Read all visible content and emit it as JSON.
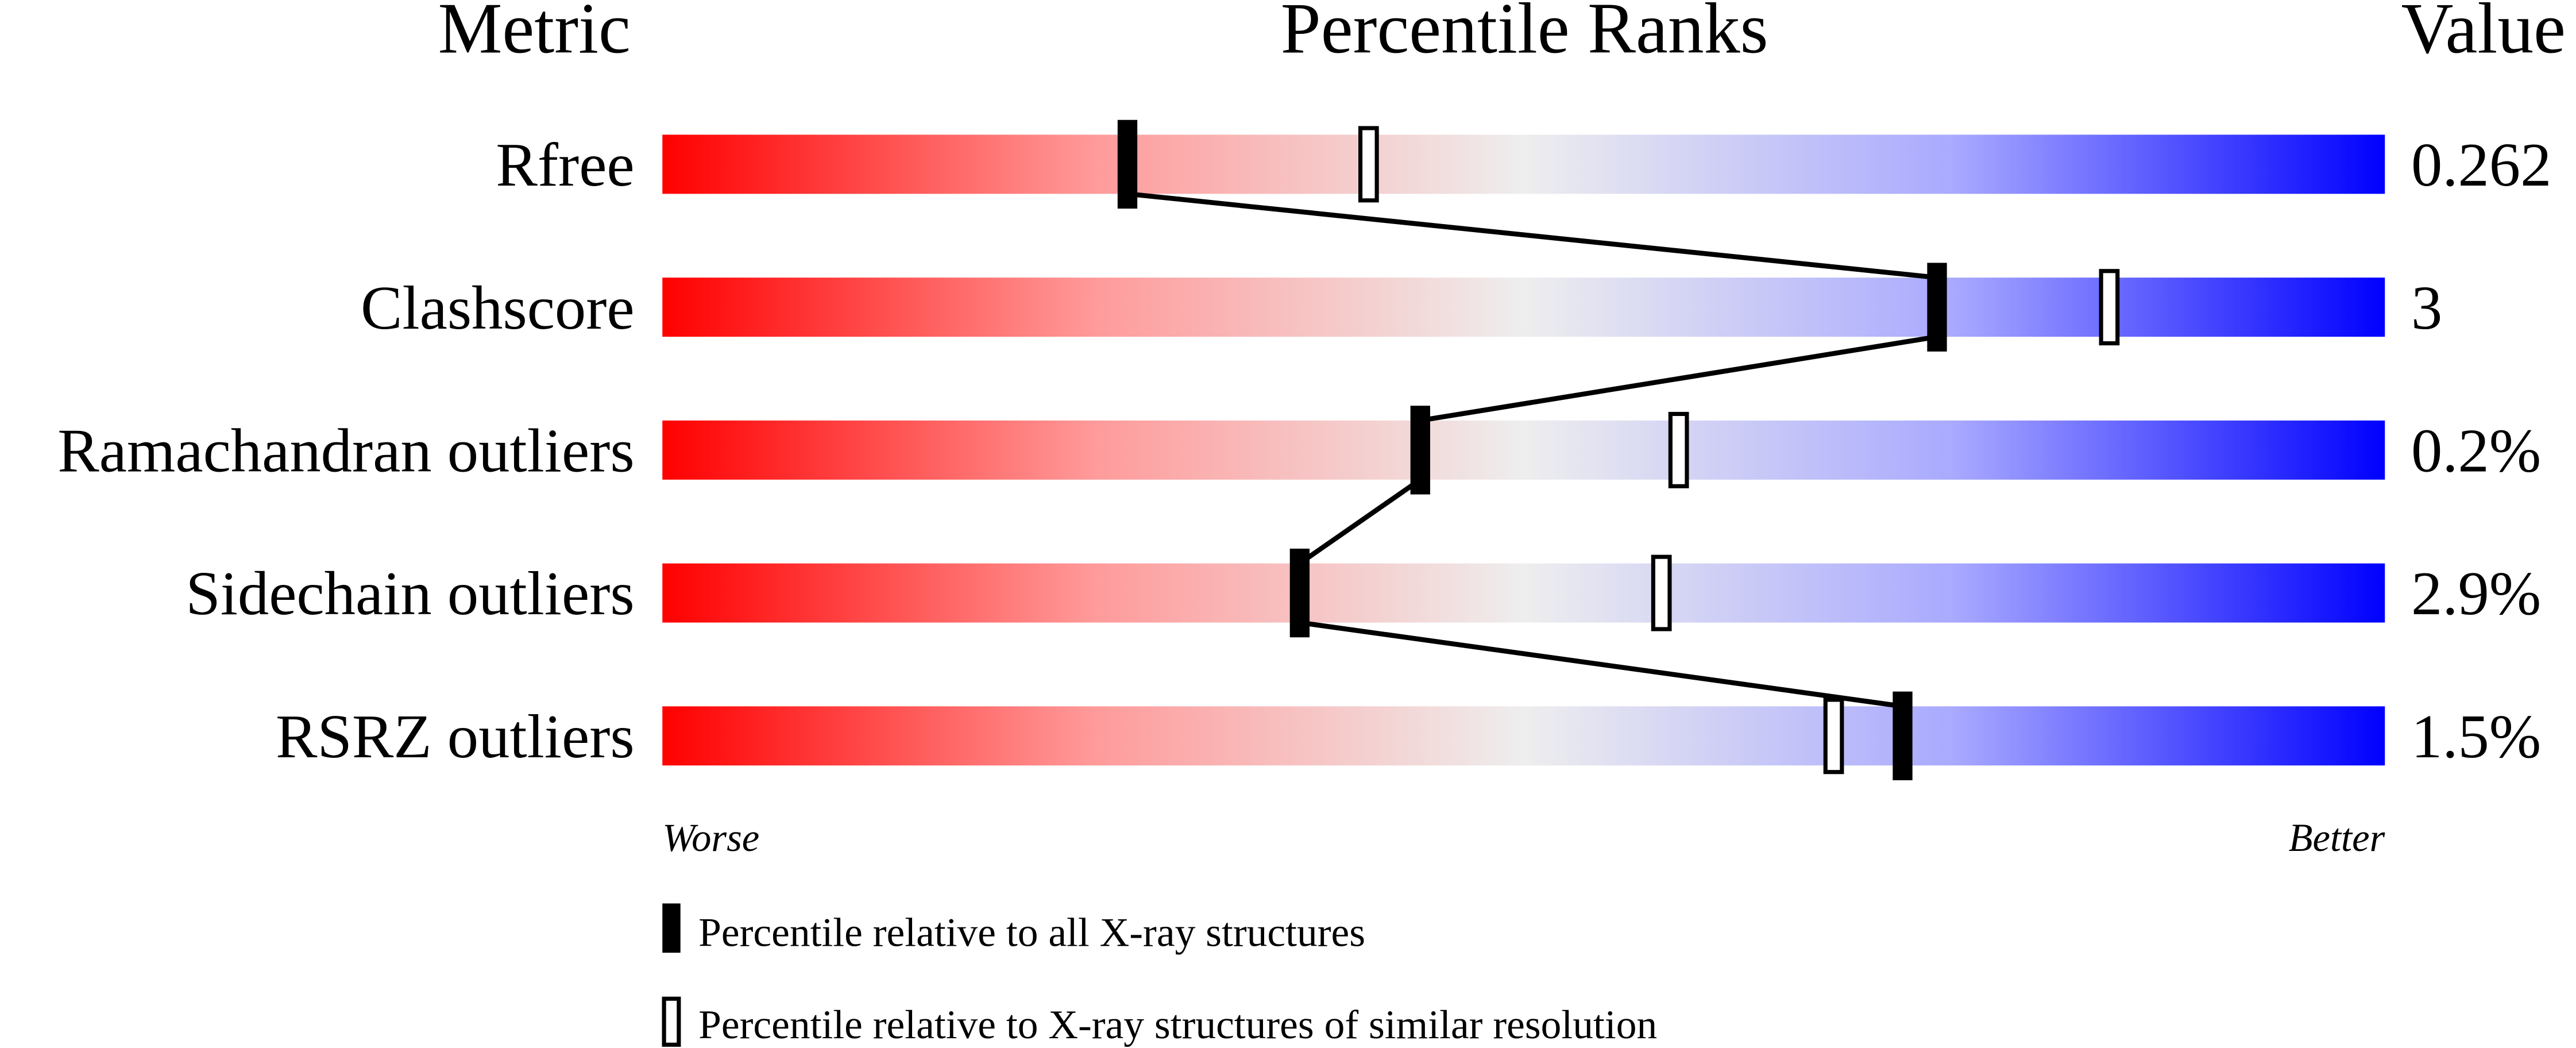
{
  "chart_data": {
    "type": "percentile-bar",
    "headers": {
      "metric": "Metric",
      "ranks": "Percentile Ranks",
      "value": "Value"
    },
    "xlim": [
      0,
      100
    ],
    "axis_ends": {
      "left": "Worse",
      "right": "Better"
    },
    "gradient_colors": [
      "#ff0000",
      "#eeeeee",
      "#0000ff"
    ],
    "metrics": [
      {
        "name": "Rfree",
        "value": "0.262",
        "percentile_all": 27,
        "percentile_similar": 41
      },
      {
        "name": "Clashscore",
        "value": "3",
        "percentile_all": 74,
        "percentile_similar": 84
      },
      {
        "name": "Ramachandran outliers",
        "value": "0.2%",
        "percentile_all": 44,
        "percentile_similar": 59
      },
      {
        "name": "Sidechain outliers",
        "value": "2.9%",
        "percentile_all": 37,
        "percentile_similar": 58
      },
      {
        "name": "RSRZ outliers",
        "value": "1.5%",
        "percentile_all": 72,
        "percentile_similar": 68
      }
    ],
    "legend": [
      {
        "marker": "filled",
        "label": "Percentile relative to all X-ray structures"
      },
      {
        "marker": "open",
        "label": "Percentile relative to X-ray structures of similar resolution"
      }
    ]
  }
}
